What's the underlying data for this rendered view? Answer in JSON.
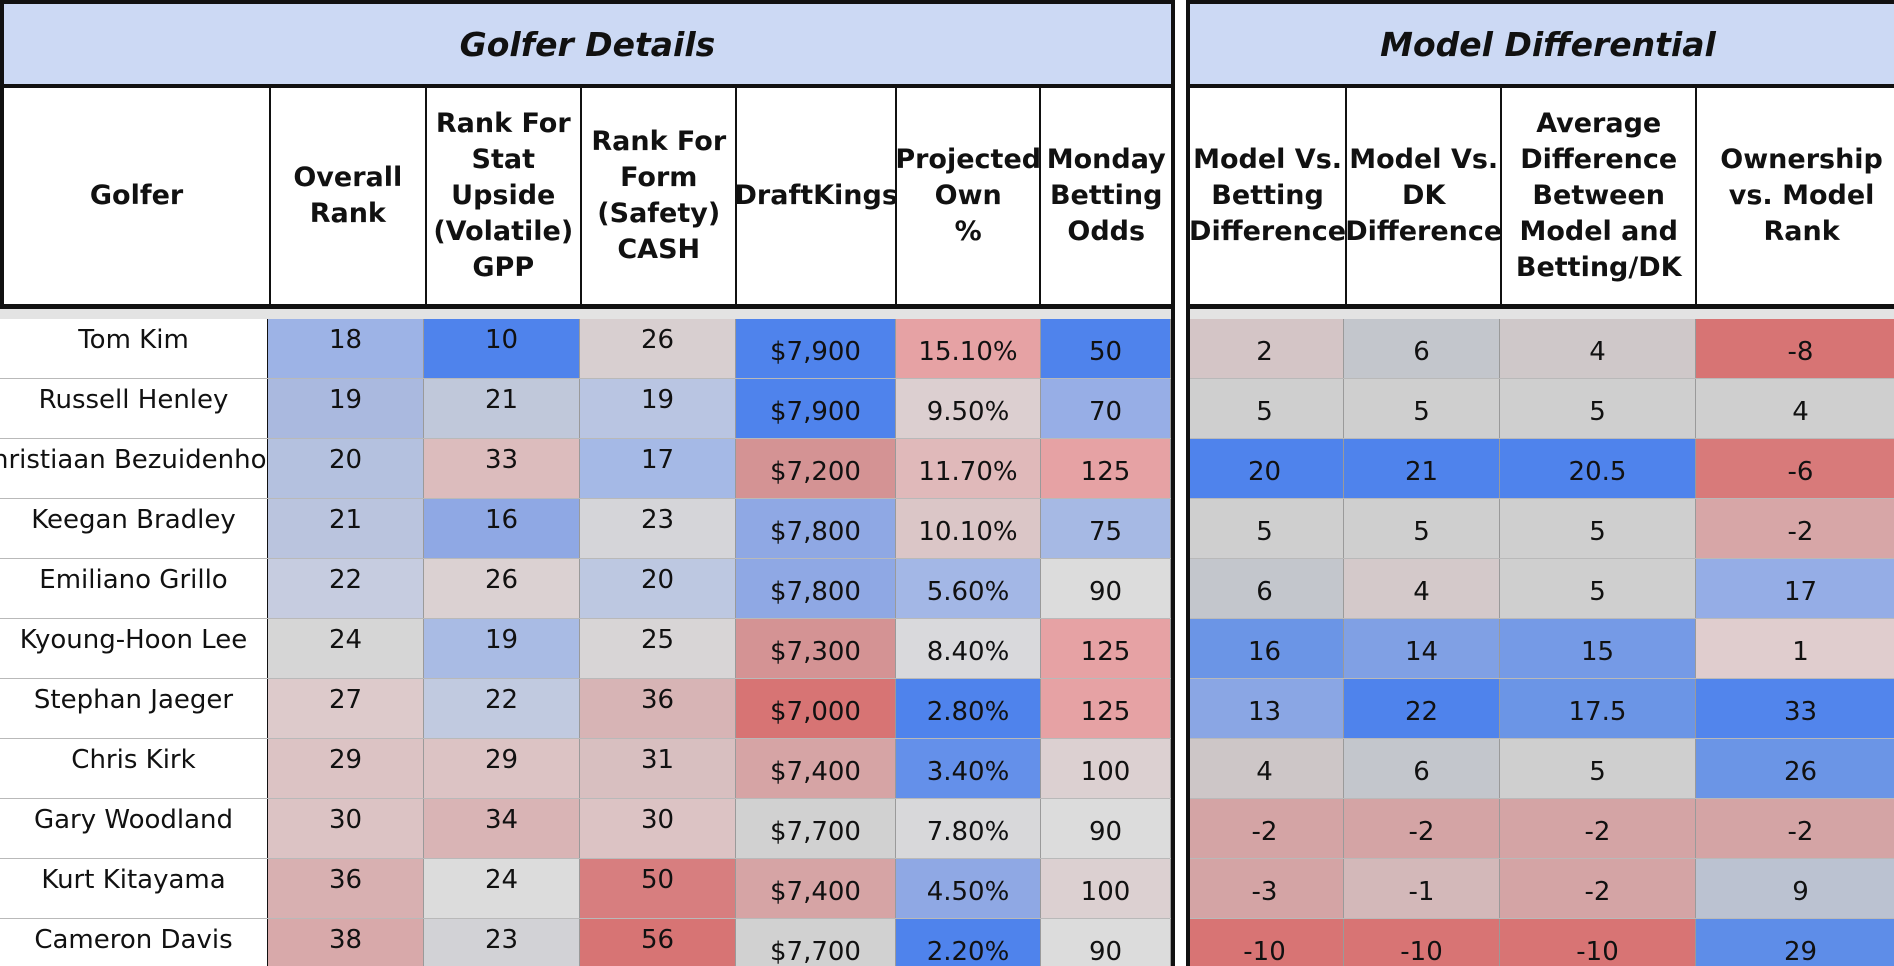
{
  "sections": {
    "golfer_details": "Golfer Details",
    "model_differential": "Model Differential"
  },
  "left_columns": [
    {
      "label": "Golfer"
    },
    {
      "label": "Overall\nRank"
    },
    {
      "label": "Rank For\nStat\nUpside\n(Volatile)\nGPP"
    },
    {
      "label": "Rank For\nForm\n(Safety)\nCASH"
    },
    {
      "label": "DraftKings"
    },
    {
      "label": "Projected\nOwn\n%"
    },
    {
      "label": "Monday\nBetting\nOdds"
    }
  ],
  "right_columns": [
    {
      "label": "Model Vs.\nBetting\nDifference"
    },
    {
      "label": "Model Vs.\nDK\nDifference"
    },
    {
      "label": "Average\nDifference\nBetween\nModel and\nBetting/DK"
    },
    {
      "label": "Ownership\nvs. Model\nRank"
    }
  ],
  "rows": [
    {
      "golfer": "Tom Kim",
      "overall_rank": "18",
      "stat_upside_rank": "10",
      "form_rank": "26",
      "draftkings": "$7,900",
      "projected_own": "15.10%",
      "monday_odds": "50",
      "model_vs_betting": "2",
      "model_vs_dk": "6",
      "avg_difference": "4",
      "ownership_vs_model": "-8"
    },
    {
      "golfer": "Russell Henley",
      "overall_rank": "19",
      "stat_upside_rank": "21",
      "form_rank": "19",
      "draftkings": "$7,900",
      "projected_own": "9.50%",
      "monday_odds": "70",
      "model_vs_betting": "5",
      "model_vs_dk": "5",
      "avg_difference": "5",
      "ownership_vs_model": "4"
    },
    {
      "golfer": "Christiaan Bezuidenhout",
      "overall_rank": "20",
      "stat_upside_rank": "33",
      "form_rank": "17",
      "draftkings": "$7,200",
      "projected_own": "11.70%",
      "monday_odds": "125",
      "model_vs_betting": "20",
      "model_vs_dk": "21",
      "avg_difference": "20.5",
      "ownership_vs_model": "-6"
    },
    {
      "golfer": "Keegan Bradley",
      "overall_rank": "21",
      "stat_upside_rank": "16",
      "form_rank": "23",
      "draftkings": "$7,800",
      "projected_own": "10.10%",
      "monday_odds": "75",
      "model_vs_betting": "5",
      "model_vs_dk": "5",
      "avg_difference": "5",
      "ownership_vs_model": "-2"
    },
    {
      "golfer": "Emiliano Grillo",
      "overall_rank": "22",
      "stat_upside_rank": "26",
      "form_rank": "20",
      "draftkings": "$7,800",
      "projected_own": "5.60%",
      "monday_odds": "90",
      "model_vs_betting": "6",
      "model_vs_dk": "4",
      "avg_difference": "5",
      "ownership_vs_model": "17"
    },
    {
      "golfer": "Kyoung-Hoon Lee",
      "overall_rank": "24",
      "stat_upside_rank": "19",
      "form_rank": "25",
      "draftkings": "$7,300",
      "projected_own": "8.40%",
      "monday_odds": "125",
      "model_vs_betting": "16",
      "model_vs_dk": "14",
      "avg_difference": "15",
      "ownership_vs_model": "1"
    },
    {
      "golfer": "Stephan Jaeger",
      "overall_rank": "27",
      "stat_upside_rank": "22",
      "form_rank": "36",
      "draftkings": "$7,000",
      "projected_own": "2.80%",
      "monday_odds": "125",
      "model_vs_betting": "13",
      "model_vs_dk": "22",
      "avg_difference": "17.5",
      "ownership_vs_model": "33"
    },
    {
      "golfer": "Chris Kirk",
      "overall_rank": "29",
      "stat_upside_rank": "29",
      "form_rank": "31",
      "draftkings": "$7,400",
      "projected_own": "3.40%",
      "monday_odds": "100",
      "model_vs_betting": "4",
      "model_vs_dk": "6",
      "avg_difference": "5",
      "ownership_vs_model": "26"
    },
    {
      "golfer": "Gary Woodland",
      "overall_rank": "30",
      "stat_upside_rank": "34",
      "form_rank": "30",
      "draftkings": "$7,700",
      "projected_own": "7.80%",
      "monday_odds": "90",
      "model_vs_betting": "-2",
      "model_vs_dk": "-2",
      "avg_difference": "-2",
      "ownership_vs_model": "-2"
    },
    {
      "golfer": "Kurt Kitayama",
      "overall_rank": "36",
      "stat_upside_rank": "24",
      "form_rank": "50",
      "draftkings": "$7,400",
      "projected_own": "4.50%",
      "monday_odds": "100",
      "model_vs_betting": "-3",
      "model_vs_dk": "-1",
      "avg_difference": "-2",
      "ownership_vs_model": "9"
    },
    {
      "golfer": "Cameron Davis",
      "overall_rank": "38",
      "stat_upside_rank": "23",
      "form_rank": "56",
      "draftkings": "$7,700",
      "projected_own": "2.20%",
      "monday_odds": "90",
      "model_vs_betting": "-10",
      "model_vs_dk": "-10",
      "avg_difference": "-10",
      "ownership_vs_model": "29"
    }
  ],
  "cell_colors": [
    [
      "#9db3e6",
      "#4f83ec",
      "#d8cfd0",
      "#4f83ec",
      "#e6a2a4",
      "#4f83ec",
      "#d4c5c6",
      "#c3c6cc",
      "#cfc8c9",
      "#d77474"
    ],
    [
      "#aab9df",
      "#c0c8da",
      "#b9c5e2",
      "#4f83ec",
      "#dccfd0",
      "#97aee6",
      "#cfcfcf",
      "#cfcfcf",
      "#cfcfcf",
      "#cfcfcf"
    ],
    [
      "#b4c1df",
      "#dcbcbd",
      "#a5b9e6",
      "#d49394",
      "#e0b9ba",
      "#e6a2a4",
      "#4f83ec",
      "#4f83ec",
      "#4f83ec",
      "#d87a7a"
    ],
    [
      "#bac4de",
      "#8fa8e4",
      "#d5d5d9",
      "#8fa8e4",
      "#dbc6c7",
      "#a6b9e4",
      "#cfcfcf",
      "#cfcfcf",
      "#cfcfcf",
      "#d7a6a7"
    ],
    [
      "#c6cce0",
      "#dbd1d2",
      "#bdc8e1",
      "#8fa8e4",
      "#a3b7e6",
      "#dcdcdc",
      "#c3c6cc",
      "#d4c9ca",
      "#cfcfcf",
      "#95ade6"
    ],
    [
      "#d6d6d6",
      "#a9bbe4",
      "#d8d5d6",
      "#d49394",
      "#d9d9dc",
      "#e6a2a4",
      "#6b95e6",
      "#80a0e4",
      "#759ae6",
      "#e0cdce"
    ],
    [
      "#ddcacb",
      "#c1cae0",
      "#d7b4b5",
      "#d77474",
      "#4f83ec",
      "#e6a2a4",
      "#8aa6e4",
      "#4f83ec",
      "#6b95e6",
      "#5285ec"
    ],
    [
      "#dcc3c4",
      "#dcc3c4",
      "#d8bfc0",
      "#d6a4a5",
      "#6490ea",
      "#dcd0d1",
      "#cdc6c7",
      "#c3c6cc",
      "#cfcfcf",
      "#6b95e6"
    ],
    [
      "#dcc3c4",
      "#d9b4b5",
      "#dcc3c4",
      "#d1d1d1",
      "#d8d8da",
      "#dcdcdc",
      "#d4a4a5",
      "#d4a4a5",
      "#d4a4a5",
      "#d4a4a5"
    ],
    [
      "#d8b0b1",
      "#dcdcdc",
      "#d77e7f",
      "#d6a4a5",
      "#8fa8e4",
      "#dcd0d1",
      "#d4a4a5",
      "#d3b8b9",
      "#d4a4a5",
      "#bbc2d1"
    ],
    [
      "#d8a9aa",
      "#d2d2d6",
      "#d77474",
      "#d1d1d1",
      "#4f83ec",
      "#dcdcdc",
      "#d87474",
      "#d87474",
      "#d87474",
      "#5e8de8"
    ]
  ]
}
